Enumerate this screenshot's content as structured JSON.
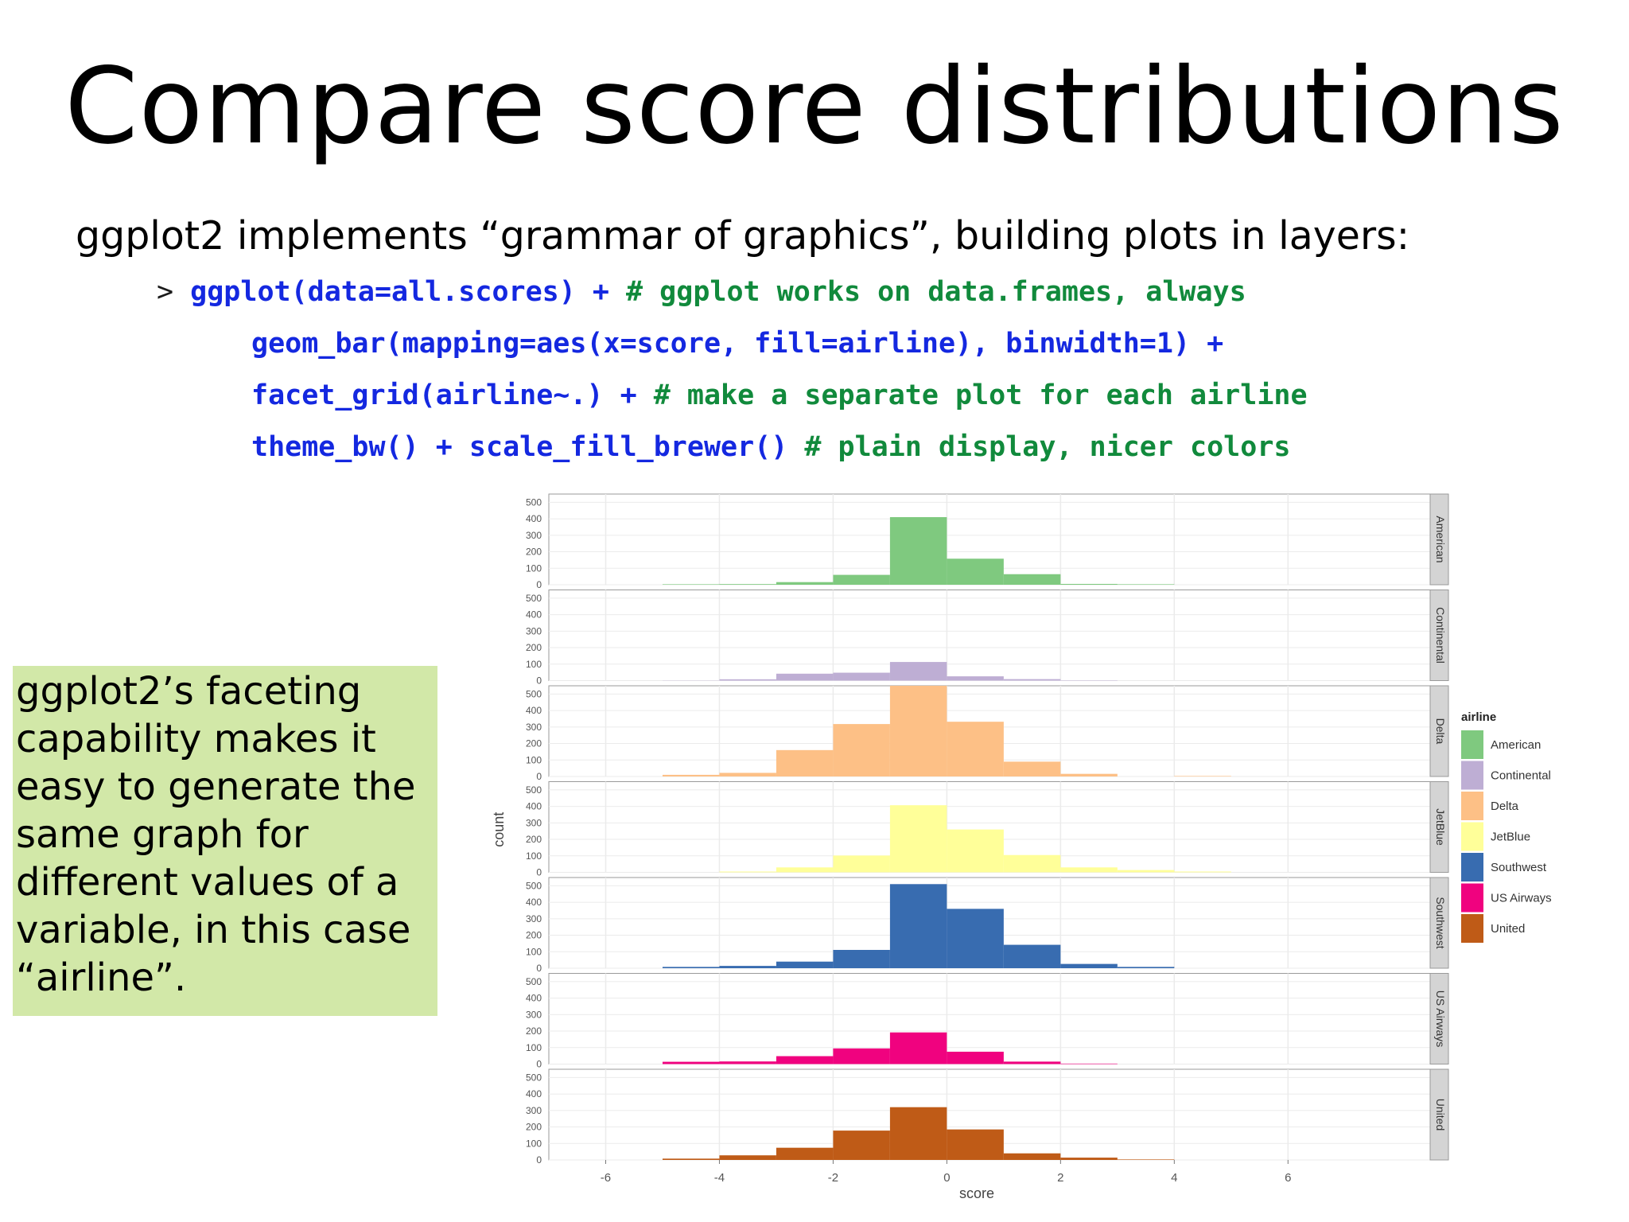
{
  "slide": {
    "title": "Compare score distributions",
    "intro": "ggplot2 implements “grammar of graphics”, building plots in layers:",
    "code": [
      {
        "prompt": "> ",
        "code": "ggplot(data=all.scores) + ",
        "comment": "# ggplot works on data.frames, always"
      },
      {
        "prompt": "",
        "code": "geom_bar(mapping=aes(x=score, fill=airline), binwidth=1) +",
        "comment": ""
      },
      {
        "prompt": "",
        "code": "facet_grid(airline~.) + ",
        "comment": "# make a separate plot for each airline"
      },
      {
        "prompt": "",
        "code": "theme_bw() + scale_fill_brewer() ",
        "comment": "# plain display, nicer colors"
      }
    ],
    "callout": "ggplot2’s faceting capability makes it easy to generate the same graph for different values of a variable, in this case “airline”."
  },
  "chart_data": {
    "type": "bar",
    "subtype": "faceted histogram",
    "xlabel": "score",
    "ylabel": "count",
    "x_ticks": [
      "-6",
      "-4",
      "-2",
      "0",
      "2",
      "4",
      "6"
    ],
    "y_ticks": [
      "0",
      "100",
      "200",
      "300",
      "400",
      "500"
    ],
    "xlim": [
      -7,
      8.5
    ],
    "ylim": [
      0,
      550
    ],
    "bin_left_edges": [
      -5,
      -4,
      -3,
      -2,
      -1,
      0,
      1,
      2,
      3,
      4,
      5
    ],
    "legend_title": "airline",
    "legend_position": "right",
    "grid": true,
    "series": [
      {
        "name": "American",
        "color": "#7fc97f",
        "values": [
          3,
          4,
          16,
          60,
          410,
          158,
          64,
          5,
          3,
          0,
          0
        ]
      },
      {
        "name": "Continental",
        "color": "#beaed4",
        "values": [
          1,
          8,
          42,
          48,
          113,
          26,
          9,
          2,
          0,
          0,
          0
        ]
      },
      {
        "name": "Delta",
        "color": "#fdc086",
        "values": [
          10,
          22,
          160,
          318,
          575,
          332,
          90,
          16,
          0,
          3,
          0
        ]
      },
      {
        "name": "JetBlue",
        "color": "#ffff99",
        "values": [
          0,
          5,
          30,
          102,
          407,
          260,
          105,
          30,
          14,
          5,
          0
        ]
      },
      {
        "name": "Southwest",
        "color": "#386cb0",
        "values": [
          8,
          14,
          40,
          111,
          510,
          360,
          142,
          26,
          8,
          0,
          0
        ]
      },
      {
        "name": "US Airways",
        "color": "#f0027f",
        "values": [
          14,
          16,
          48,
          95,
          192,
          75,
          15,
          3,
          0,
          0,
          0
        ]
      },
      {
        "name": "United",
        "color": "#bf5b17",
        "values": [
          8,
          28,
          74,
          178,
          320,
          185,
          40,
          14,
          3,
          0,
          0
        ]
      }
    ]
  }
}
